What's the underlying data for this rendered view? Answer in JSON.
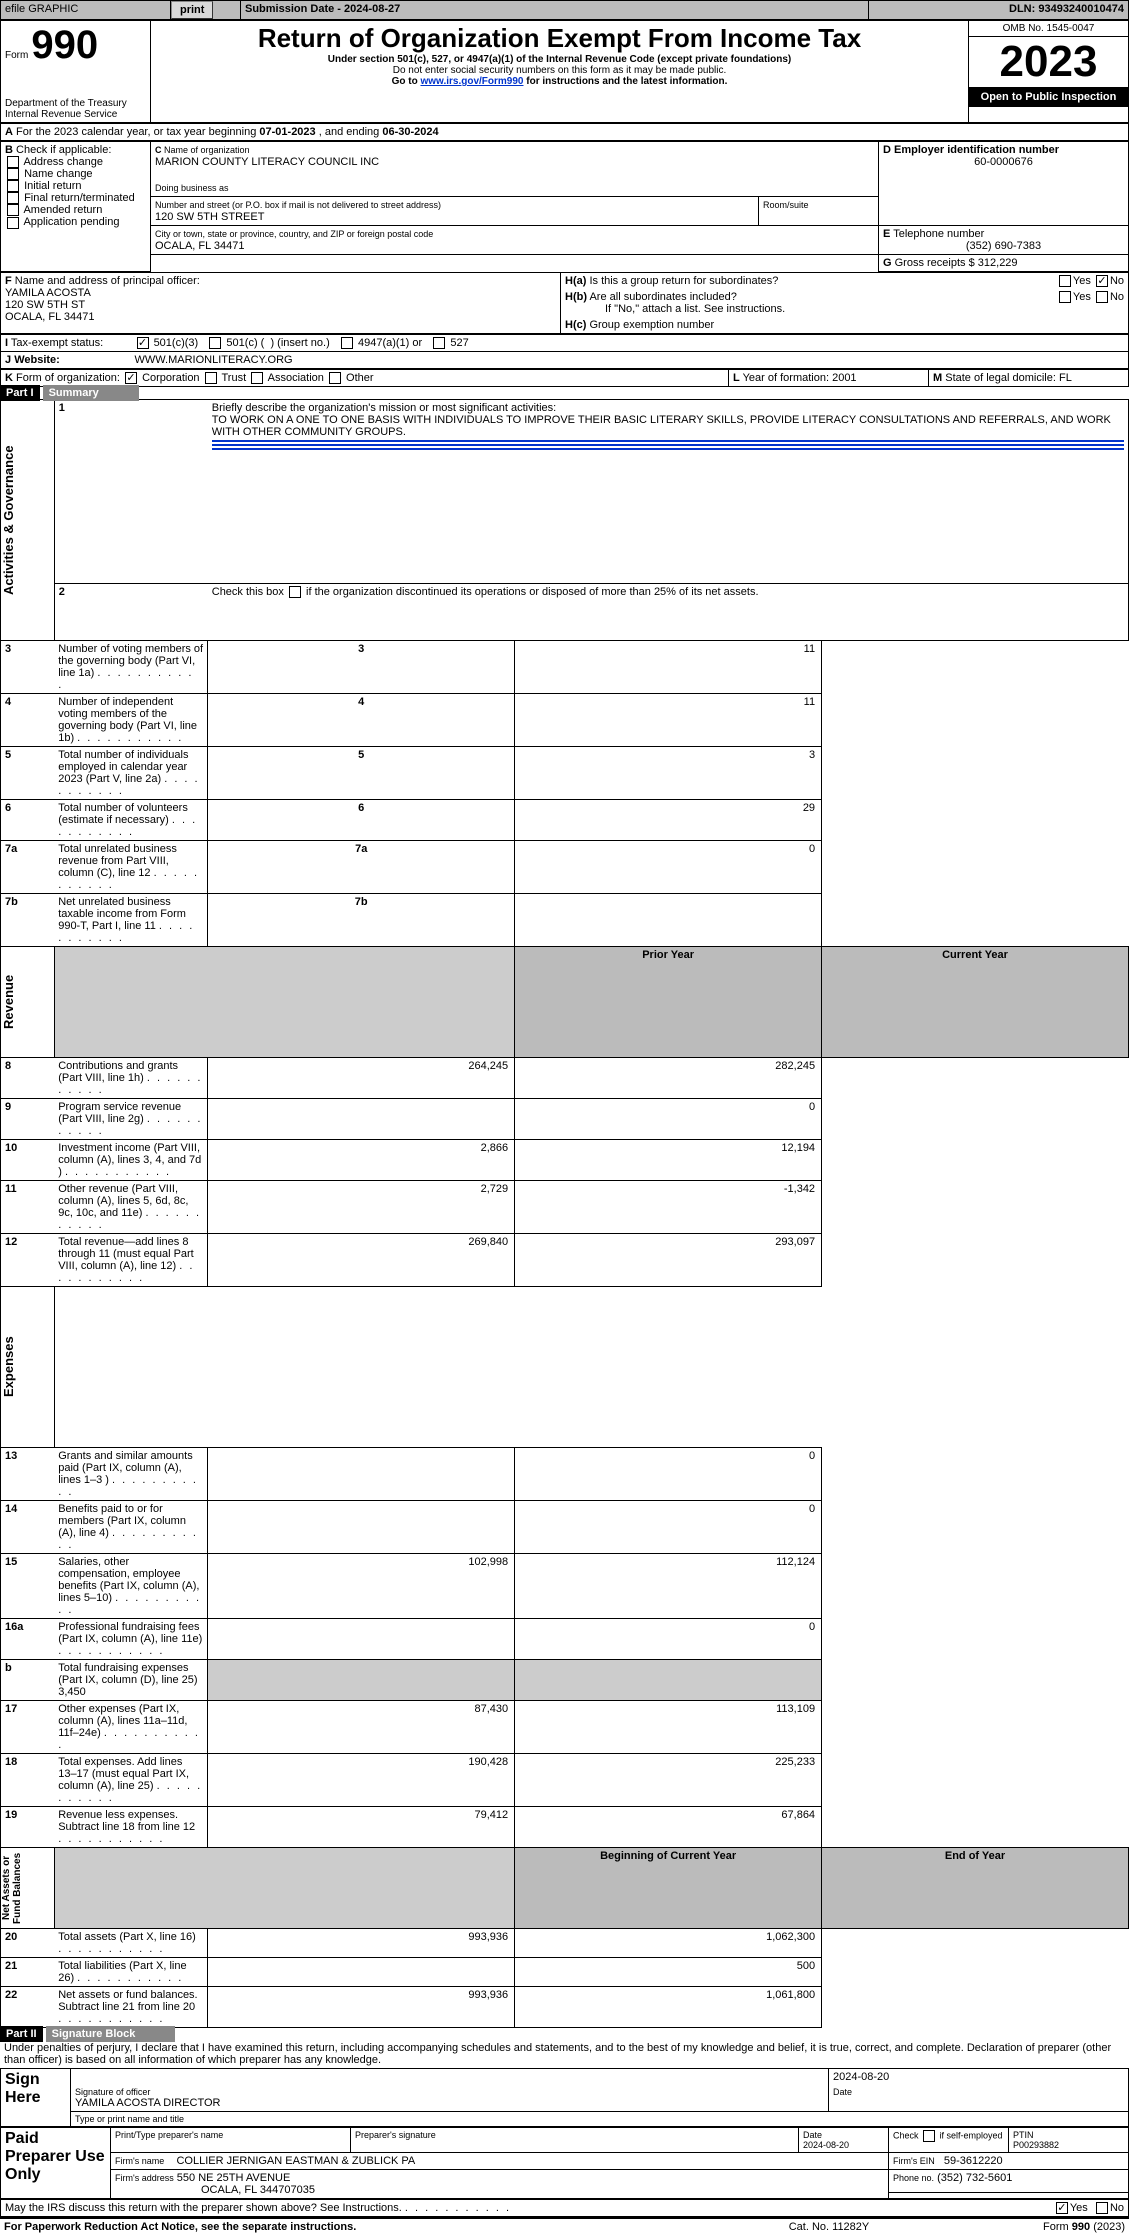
{
  "topbar": {
    "efile_label": "efile GRAPHIC",
    "print_btn": "print",
    "submission_label": "Submission Date - 2024-08-27",
    "dln_label": "DLN: 93493240010474"
  },
  "header": {
    "form_word": "Form",
    "form_num": "990",
    "dept": "Department of the Treasury\nInternal Revenue Service",
    "title": "Return of Organization Exempt From Income Tax",
    "subtitle": "Under section 501(c), 527, or 4947(a)(1) of the Internal Revenue Code (except private foundations)",
    "ssn_note": "Do not enter social security numbers on this form as it may be made public.",
    "goto_prefix": "Go to ",
    "goto_link": "www.irs.gov/Form990",
    "goto_suffix": " for instructions and the latest information.",
    "omb": "OMB No. 1545-0047",
    "year": "2023",
    "open": "Open to Public Inspection"
  },
  "lineA": {
    "text_prefix": "For the 2023 calendar year, or tax year beginning ",
    "begin": "07-01-2023",
    "mid": " , and ending ",
    "end": "06-30-2024"
  },
  "boxB": {
    "label": "Check if applicable:",
    "opts": [
      "Address change",
      "Name change",
      "Initial return",
      "Final return/terminated",
      "Amended return",
      "Application pending"
    ]
  },
  "boxC": {
    "name_label": "Name of organization",
    "name": "MARION COUNTY LITERACY COUNCIL INC",
    "dba_label": "Doing business as",
    "street_label": "Number and street (or P.O. box if mail is not delivered to street address)",
    "street": "120 SW 5TH STREET",
    "room_label": "Room/suite",
    "city_label": "City or town, state or province, country, and ZIP or foreign postal code",
    "city": "OCALA, FL  34471"
  },
  "boxD": {
    "label": "Employer identification number",
    "val": "60-0000676"
  },
  "boxE": {
    "label": "Telephone number",
    "val": "(352) 690-7383"
  },
  "boxG": {
    "label": "Gross receipts $",
    "val": "312,229"
  },
  "boxF": {
    "label": "Name and address of principal officer:",
    "name": "YAMILA ACOSTA",
    "street": "120 SW 5TH ST",
    "city": "OCALA, FL  34471"
  },
  "boxH": {
    "a_label": "Is this a group return for subordinates?",
    "a_yes": "Yes",
    "a_no": "No",
    "b_label": "Are all subordinates included?",
    "b_yes": "Yes",
    "b_no": "No",
    "b_note": "If \"No,\" attach a list. See instructions.",
    "c_label": "Group exemption number"
  },
  "lineI": {
    "label": "Tax-exempt status:",
    "o1": "501(c)(3)",
    "o2a": "501(c) (",
    "o2b": ") (insert no.)",
    "o3": "4947(a)(1) or",
    "o4": "527"
  },
  "lineJ": {
    "label": "Website:",
    "val": "WWW.MARIONLITERACY.ORG"
  },
  "lineK": {
    "label": "Form of organization:",
    "opts": [
      "Corporation",
      "Trust",
      "Association",
      "Other"
    ]
  },
  "lineL": {
    "label": "Year of formation:",
    "val": "2001"
  },
  "lineM": {
    "label": "State of legal domicile:",
    "val": "FL"
  },
  "part1": {
    "part": "Part I",
    "title": "Summary",
    "q1_label": "Briefly describe the organization's mission or most significant activities:",
    "q1_text": "TO WORK ON A ONE TO ONE BASIS WITH INDIVIDUALS TO IMPROVE THEIR BASIC LITERARY SKILLS, PROVIDE LITERACY CONSULTATIONS AND REFERRALS, AND WORK WITH OTHER COMMUNITY GROUPS.",
    "q2": "Check this box      if the organization discontinued its operations or disposed of more than 25% of its net assets.",
    "side_gov": "Activities & Governance",
    "side_rev": "Revenue",
    "side_exp": "Expenses",
    "side_net": "Net Assets or Fund Balances",
    "rows_gov": [
      {
        "n": "3",
        "t": "Number of voting members of the governing body (Part VI, line 1a)",
        "v": "11"
      },
      {
        "n": "4",
        "t": "Number of independent voting members of the governing body (Part VI, line 1b)",
        "v": "11"
      },
      {
        "n": "5",
        "t": "Total number of individuals employed in calendar year 2023 (Part V, line 2a)",
        "v": "3"
      },
      {
        "n": "6",
        "t": "Total number of volunteers (estimate if necessary)",
        "v": "29"
      },
      {
        "n": "7a",
        "t": "Total unrelated business revenue from Part VIII, column (C), line 12",
        "v": "0"
      },
      {
        "n": "7b",
        "t": "Net unrelated business taxable income from Form 990-T, Part I, line 11",
        "v": ""
      }
    ],
    "col_prior": "Prior Year",
    "col_curr": "Current Year",
    "rows_rev": [
      {
        "n": "8",
        "t": "Contributions and grants (Part VIII, line 1h)",
        "p": "264,245",
        "c": "282,245"
      },
      {
        "n": "9",
        "t": "Program service revenue (Part VIII, line 2g)",
        "p": "",
        "c": "0"
      },
      {
        "n": "10",
        "t": "Investment income (Part VIII, column (A), lines 3, 4, and 7d )",
        "p": "2,866",
        "c": "12,194"
      },
      {
        "n": "11",
        "t": "Other revenue (Part VIII, column (A), lines 5, 6d, 8c, 9c, 10c, and 11e)",
        "p": "2,729",
        "c": "-1,342"
      },
      {
        "n": "12",
        "t": "Total revenue—add lines 8 through 11 (must equal Part VIII, column (A), line 12)",
        "p": "269,840",
        "c": "293,097"
      }
    ],
    "rows_exp": [
      {
        "n": "13",
        "t": "Grants and similar amounts paid (Part IX, column (A), lines 1–3 )",
        "p": "",
        "c": "0"
      },
      {
        "n": "14",
        "t": "Benefits paid to or for members (Part IX, column (A), line 4)",
        "p": "",
        "c": "0"
      },
      {
        "n": "15",
        "t": "Salaries, other compensation, employee benefits (Part IX, column (A), lines 5–10)",
        "p": "102,998",
        "c": "112,124"
      },
      {
        "n": "16a",
        "t": "Professional fundraising fees (Part IX, column (A), line 11e)",
        "p": "",
        "c": "0"
      },
      {
        "n": "b",
        "t": "Total fundraising expenses (Part IX, column (D), line 25) 3,450",
        "p": "__shade__",
        "c": "__shade__"
      },
      {
        "n": "17",
        "t": "Other expenses (Part IX, column (A), lines 11a–11d, 11f–24e)",
        "p": "87,430",
        "c": "113,109"
      },
      {
        "n": "18",
        "t": "Total expenses. Add lines 13–17 (must equal Part IX, column (A), line 25)",
        "p": "190,428",
        "c": "225,233"
      },
      {
        "n": "19",
        "t": "Revenue less expenses. Subtract line 18 from line 12",
        "p": "79,412",
        "c": "67,864"
      }
    ],
    "col_beg": "Beginning of Current Year",
    "col_end": "End of Year",
    "rows_net": [
      {
        "n": "20",
        "t": "Total assets (Part X, line 16)",
        "p": "993,936",
        "c": "1,062,300"
      },
      {
        "n": "21",
        "t": "Total liabilities (Part X, line 26)",
        "p": "",
        "c": "500"
      },
      {
        "n": "22",
        "t": "Net assets or fund balances. Subtract line 21 from line 20",
        "p": "993,936",
        "c": "1,061,800"
      }
    ]
  },
  "part2": {
    "part": "Part II",
    "title": "Signature Block",
    "decl": "Under penalties of perjury, I declare that I have examined this return, including accompanying schedules and statements, and to the best of my knowledge and belief, it is true, correct, and complete. Declaration of preparer (other than officer) is based on all information of which preparer has any knowledge.",
    "sign_here": "Sign Here",
    "sig_officer": "Signature of officer",
    "sig_date": "Date",
    "sig_date_val": "2024-08-20",
    "officer_name": "YAMILA ACOSTA  DIRECTOR",
    "type_name": "Type or print name and title",
    "paid": "Paid Preparer Use Only",
    "prep_name_lbl": "Print/Type preparer's name",
    "prep_sig_lbl": "Preparer's signature",
    "prep_date_lbl": "Date",
    "prep_date_val": "2024-08-20",
    "self_emp": "Check        if self-employed",
    "ptin_lbl": "PTIN",
    "ptin": "P00293882",
    "firm_name_lbl": "Firm's name",
    "firm_name": "COLLIER JERNIGAN EASTMAN & ZUBLICK PA",
    "firm_ein_lbl": "Firm's EIN",
    "firm_ein": "59-3612220",
    "firm_addr_lbl": "Firm's address",
    "firm_addr1": "550 NE 25TH AVENUE",
    "firm_addr2": "OCALA, FL  344707035",
    "phone_lbl": "Phone no.",
    "phone": "(352) 732-5601",
    "discuss": "May the IRS discuss this return with the preparer shown above? See Instructions.",
    "yes": "Yes",
    "no": "No"
  },
  "footer": {
    "pra": "For Paperwork Reduction Act Notice, see the separate instructions.",
    "cat": "Cat. No. 11282Y",
    "form": "Form 990 (2023)"
  }
}
